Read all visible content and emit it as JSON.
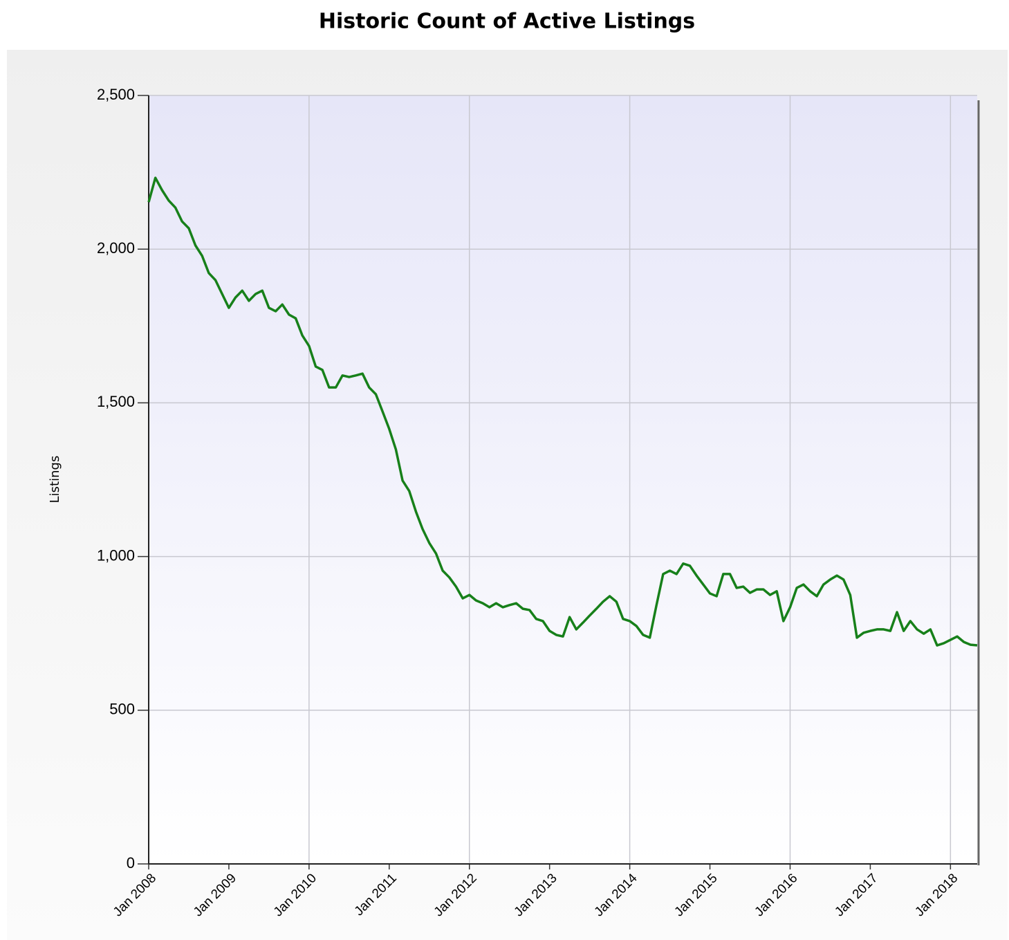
{
  "chart_data": {
    "type": "line",
    "title": "Historic Count of Active Listings",
    "y_label": "Listings",
    "categories": [
      "Jan 2008",
      null,
      null,
      null,
      null,
      null,
      null,
      null,
      null,
      null,
      null,
      null,
      "Jan 2009",
      null,
      null,
      null,
      null,
      null,
      null,
      null,
      null,
      null,
      null,
      null,
      "Jan 2010",
      null,
      null,
      null,
      null,
      null,
      null,
      null,
      null,
      null,
      null,
      null,
      "Jan 2011",
      null,
      null,
      null,
      null,
      null,
      null,
      null,
      null,
      null,
      null,
      null,
      "Jan 2012",
      null,
      null,
      null,
      null,
      null,
      null,
      null,
      null,
      null,
      null,
      null,
      "Jan 2013",
      null,
      null,
      null,
      null,
      null,
      null,
      null,
      null,
      null,
      null,
      null,
      "Jan 2014",
      null,
      null,
      null,
      null,
      null,
      null,
      null,
      null,
      null,
      null,
      null,
      "Jan 2015",
      null,
      null,
      null,
      null,
      null,
      null,
      null,
      null,
      null,
      null,
      null,
      "Jan 2016",
      null,
      null,
      null,
      null,
      null,
      null,
      null,
      null,
      null,
      null,
      null,
      "Jan 2017",
      null,
      null,
      null,
      null,
      null,
      null,
      null,
      null,
      null,
      null,
      null,
      "Jan 2018",
      null,
      null,
      null,
      null
    ],
    "series": [
      {
        "name": "Listings",
        "color": "#17801a",
        "values": [
          2153,
          2232,
          2192,
          2158,
          2135,
          2090,
          2068,
          2012,
          1978,
          1922,
          1899,
          1854,
          1809,
          1843,
          1865,
          1832,
          1854,
          1865,
          1809,
          1798,
          1820,
          1787,
          1775,
          1719,
          1685,
          1618,
          1607,
          1550,
          1550,
          1589,
          1584,
          1589,
          1595,
          1550,
          1528,
          1472,
          1415,
          1348,
          1247,
          1213,
          1146,
          1089,
          1044,
          1010,
          954,
          932,
          902,
          864,
          875,
          857,
          848,
          835,
          848,
          835,
          842,
          848,
          830,
          826,
          797,
          790,
          758,
          745,
          740,
          803,
          763,
          785,
          808,
          830,
          853,
          871,
          853,
          797,
          790,
          774,
          745,
          736,
          842,
          943,
          954,
          943,
          977,
          970,
          938,
          909,
          880,
          871,
          943,
          943,
          898,
          902,
          882,
          893,
          893,
          875,
          887,
          790,
          835,
          898,
          909,
          887,
          871,
          909,
          925,
          938,
          925,
          875,
          736,
          752,
          758,
          763,
          763,
          758,
          819,
          758,
          790,
          763,
          749,
          763,
          711,
          718,
          729,
          740,
          722,
          713,
          711
        ]
      }
    ],
    "ylim": [
      0,
      2500
    ],
    "yticks": [
      0,
      500,
      {
        "value": 1000,
        "label": "1,000"
      },
      {
        "value": 1500,
        "label": "1,500"
      },
      {
        "value": 2000,
        "label": "2,000"
      },
      {
        "value": 2500,
        "label": "2,500"
      }
    ],
    "grid": true
  }
}
